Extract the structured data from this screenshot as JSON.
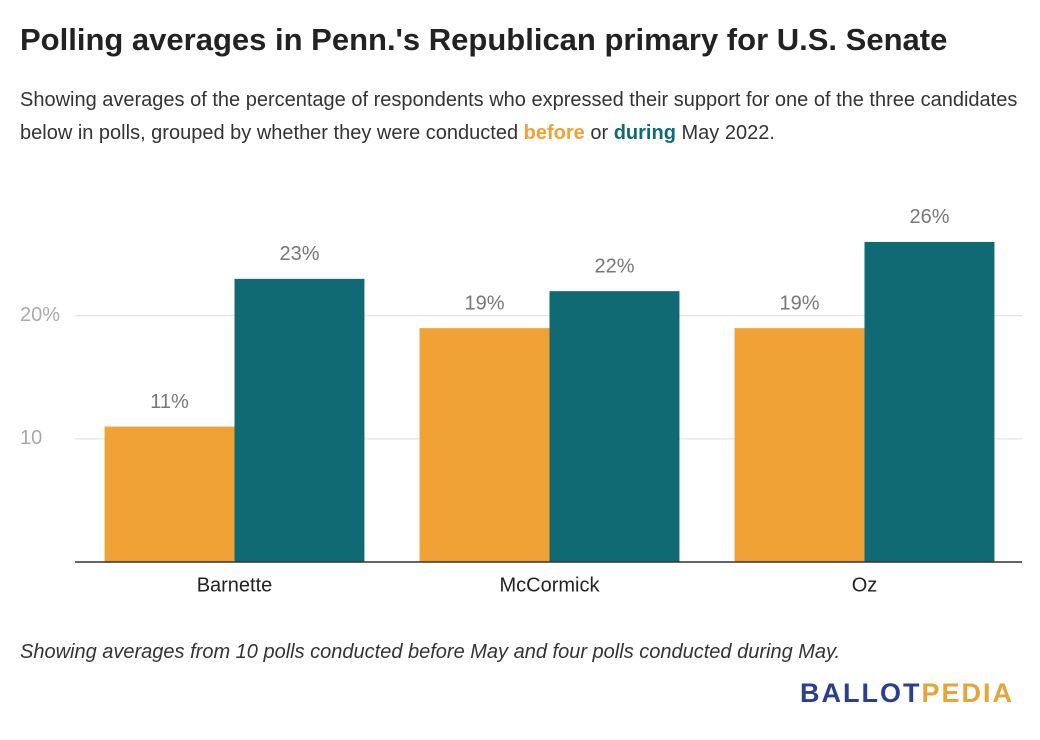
{
  "chart_data": {
    "type": "bar",
    "title": "Polling averages in Penn.'s Republican primary for U.S. Senate",
    "subtitle": {
      "lead": "Showing averages of the percentage of respondents who expressed their support for one of the three candidates below in polls, grouped by whether they were conducted",
      "joiner": "or",
      "tail": "May 2022."
    },
    "categories": [
      "Barnette",
      "McCormick",
      "Oz"
    ],
    "series": [
      {
        "name": "before",
        "color": "#f0a237",
        "values": [
          11,
          19,
          19
        ],
        "value_labels": [
          "11%",
          "19%",
          "19%"
        ]
      },
      {
        "name": "during",
        "color": "#0f6a73",
        "values": [
          23,
          22,
          26
        ],
        "value_labels": [
          "23%",
          "22%",
          "26%"
        ]
      }
    ],
    "ylim": [
      0,
      29
    ],
    "yticks": [
      10,
      {
        "value": 20,
        "label": "20%"
      }
    ],
    "grid": true,
    "note": "Showing averages from 10 polls conducted before May and four polls conducted during May.",
    "logo": [
      "BALLOT",
      "PEDIA"
    ]
  }
}
